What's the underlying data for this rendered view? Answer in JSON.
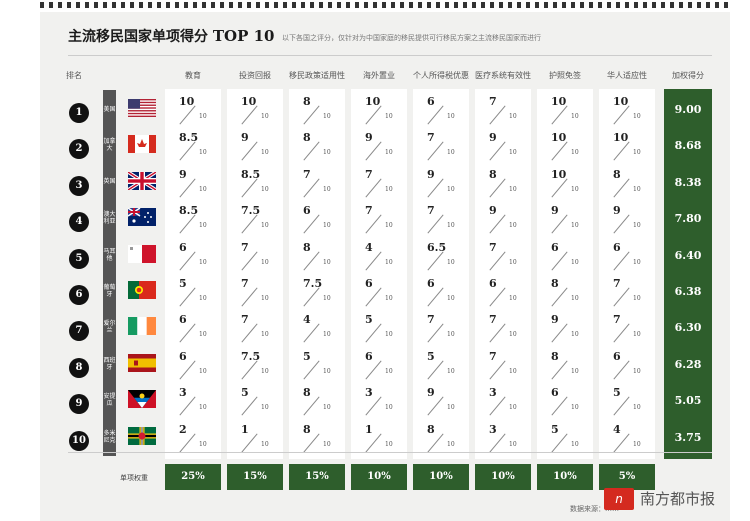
{
  "header": {
    "title_cn": "主流移民国家单项得分",
    "title_en": "TOP 10",
    "subtitle": "以下各国之评分，仅针对为中国家庭的移民提供可行移民方案之主流移民国家而进行"
  },
  "columns": {
    "rank": "排名",
    "total": "加权得分"
  },
  "weights_label": "单项权重",
  "brand": {
    "logo_text": "n",
    "name": "南方都市报",
    "source_note": "数据来源：……"
  },
  "colors": {
    "accent_green": "#2e5e2c",
    "circle": "#111111",
    "logo_red": "#d42a1f"
  },
  "chart_data": {
    "type": "table",
    "categories": [
      "教育",
      "投资回报",
      "移民政策适用性",
      "海外置业",
      "个人所得税优惠",
      "医疗系统有效性",
      "护照免签",
      "华人适应性"
    ],
    "weights": [
      "25%",
      "15%",
      "15%",
      "10%",
      "10%",
      "10%",
      "10%",
      "5%"
    ],
    "denominator": "10",
    "rows": [
      {
        "rank": "1",
        "country": "美国",
        "flag": "us",
        "scores": [
          "10",
          "10",
          "8",
          "10",
          "6",
          "7",
          "10",
          "10"
        ],
        "total": "9.00"
      },
      {
        "rank": "2",
        "country": "加拿大",
        "flag": "ca",
        "scores": [
          "8.5",
          "9",
          "8",
          "9",
          "7",
          "9",
          "10",
          "10"
        ],
        "total": "8.68"
      },
      {
        "rank": "3",
        "country": "英国",
        "flag": "uk",
        "scores": [
          "9",
          "8.5",
          "7",
          "7",
          "9",
          "8",
          "10",
          "8"
        ],
        "total": "8.38"
      },
      {
        "rank": "4",
        "country": "澳大利亚",
        "flag": "au",
        "scores": [
          "8.5",
          "7.5",
          "6",
          "7",
          "7",
          "9",
          "9",
          "9"
        ],
        "total": "7.80"
      },
      {
        "rank": "5",
        "country": "马耳他",
        "flag": "mt",
        "scores": [
          "6",
          "7",
          "8",
          "4",
          "6.5",
          "7",
          "6",
          "6"
        ],
        "total": "6.40"
      },
      {
        "rank": "6",
        "country": "葡萄牙",
        "flag": "pt",
        "scores": [
          "5",
          "7",
          "7.5",
          "6",
          "6",
          "6",
          "8",
          "7"
        ],
        "total": "6.38"
      },
      {
        "rank": "7",
        "country": "爱尔兰",
        "flag": "ie",
        "scores": [
          "6",
          "7",
          "4",
          "5",
          "7",
          "7",
          "9",
          "7"
        ],
        "total": "6.30"
      },
      {
        "rank": "8",
        "country": "西班牙",
        "flag": "es",
        "scores": [
          "6",
          "7.5",
          "5",
          "6",
          "5",
          "7",
          "8",
          "6"
        ],
        "total": "6.28"
      },
      {
        "rank": "9",
        "country": "安提瓜",
        "flag": "ag",
        "scores": [
          "3",
          "5",
          "8",
          "3",
          "9",
          "3",
          "6",
          "5"
        ],
        "total": "5.05"
      },
      {
        "rank": "10",
        "country": "多米尼克",
        "flag": "dm",
        "scores": [
          "2",
          "1",
          "8",
          "1",
          "8",
          "3",
          "5",
          "4"
        ],
        "total": "3.75"
      }
    ]
  }
}
